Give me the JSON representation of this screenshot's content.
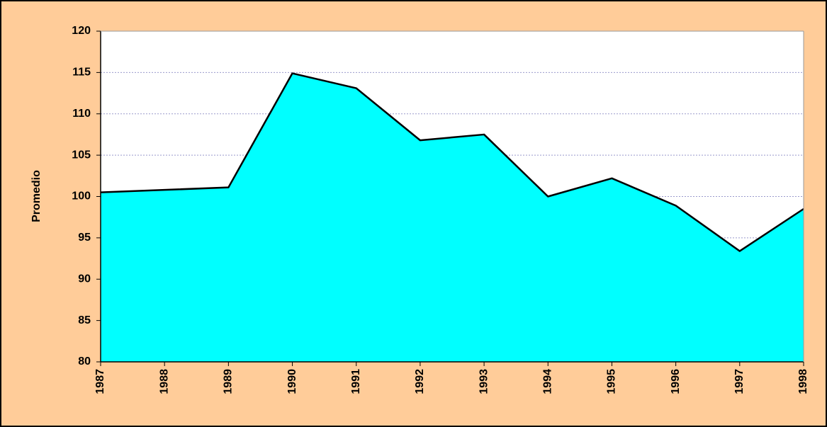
{
  "chart_data": {
    "type": "area",
    "y_label": "Promedio",
    "x": [
      1987,
      1988,
      1989,
      1990,
      1991,
      1992,
      1993,
      1994,
      1995,
      1996,
      1997,
      1998
    ],
    "values": [
      100.5,
      100.8,
      101.1,
      114.9,
      113.1,
      106.8,
      107.5,
      100.0,
      102.2,
      98.9,
      93.4,
      98.5
    ],
    "color": "#00ffff",
    "line_color": "#000000",
    "xlim": [
      1987,
      1998
    ],
    "ylim": [
      80,
      120
    ],
    "yticks": [
      80,
      85,
      90,
      95,
      100,
      105,
      110,
      115,
      120
    ],
    "grid": true
  }
}
